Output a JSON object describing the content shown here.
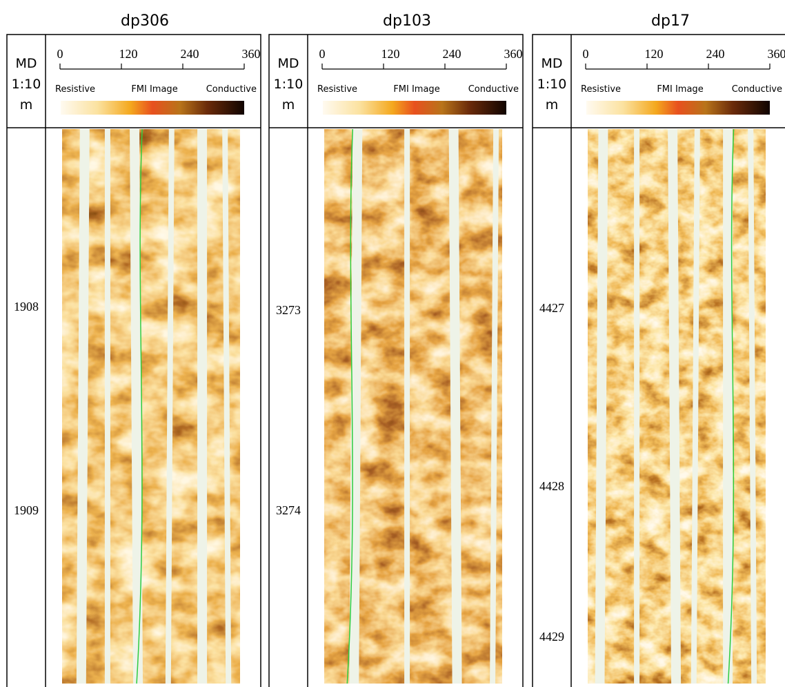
{
  "panels": [
    {
      "title": "dp306",
      "md_header": [
        "MD",
        "1:10",
        "m"
      ],
      "scale_ticks": [
        "0",
        "120",
        "240",
        "360"
      ],
      "scale_labels": [
        "Resistive",
        "FMI Image",
        "Conductive"
      ],
      "depths": [
        "1908",
        "1909"
      ]
    },
    {
      "title": "dp103",
      "md_header": [
        "MD",
        "1:10",
        "m"
      ],
      "scale_ticks": [
        "0",
        "120",
        "240",
        "360"
      ],
      "scale_labels": [
        "Resistive",
        "FMI Image",
        "Conductive"
      ],
      "depths": [
        "3273",
        "3274"
      ]
    },
    {
      "title": "dp17",
      "md_header": [
        "MD",
        "1:10",
        "m"
      ],
      "scale_ticks": [
        "0",
        "120",
        "240",
        "360"
      ],
      "scale_labels": [
        "Resistive",
        "FMI Image",
        "Conductive"
      ],
      "depths": [
        "4427",
        "4428",
        "4429"
      ]
    }
  ]
}
